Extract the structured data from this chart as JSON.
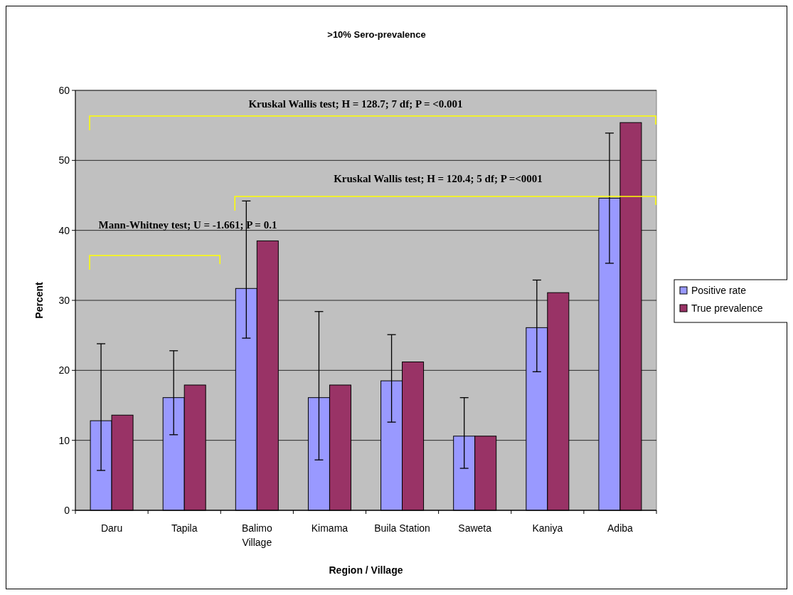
{
  "chart_data": {
    "type": "bar",
    "title": ">10% Sero-prevalence",
    "xlabel": "Region / Village",
    "ylabel": "Percent",
    "categories": [
      "Daru",
      "Tapila",
      "Balimo Village",
      "Kimama",
      "Buila Station",
      "Saweta",
      "Kaniya",
      "Adiba"
    ],
    "series": [
      {
        "name": "Positive rate",
        "color": "#9999ff",
        "values": [
          12.8,
          16.1,
          31.7,
          16.1,
          18.5,
          10.6,
          26.1,
          44.6
        ],
        "errors": [
          [
            5.7,
            23.8
          ],
          [
            10.8,
            22.8
          ],
          [
            24.6,
            44.2
          ],
          [
            7.2,
            28.4
          ],
          [
            12.6,
            25.1
          ],
          [
            6.0,
            16.1
          ],
          [
            19.8,
            32.9
          ],
          [
            35.3,
            53.9
          ]
        ]
      },
      {
        "name": "True prevalence",
        "color": "#993366",
        "values": [
          13.6,
          17.9,
          38.5,
          17.9,
          21.2,
          10.6,
          31.1,
          55.4
        ]
      }
    ],
    "ylim": [
      0,
      60
    ],
    "yticks": [
      0,
      10,
      20,
      30,
      40,
      50,
      60
    ],
    "grid": "y",
    "legend": "right",
    "annotations": [
      "Kruskal Wallis test; H = 128.7; 7 df; P = <0.001",
      "Kruskal Wallis test; H = 120.4; 5 df; P =<0001",
      "Mann-Whitney test; U = -1.661; P = 0.1"
    ]
  }
}
